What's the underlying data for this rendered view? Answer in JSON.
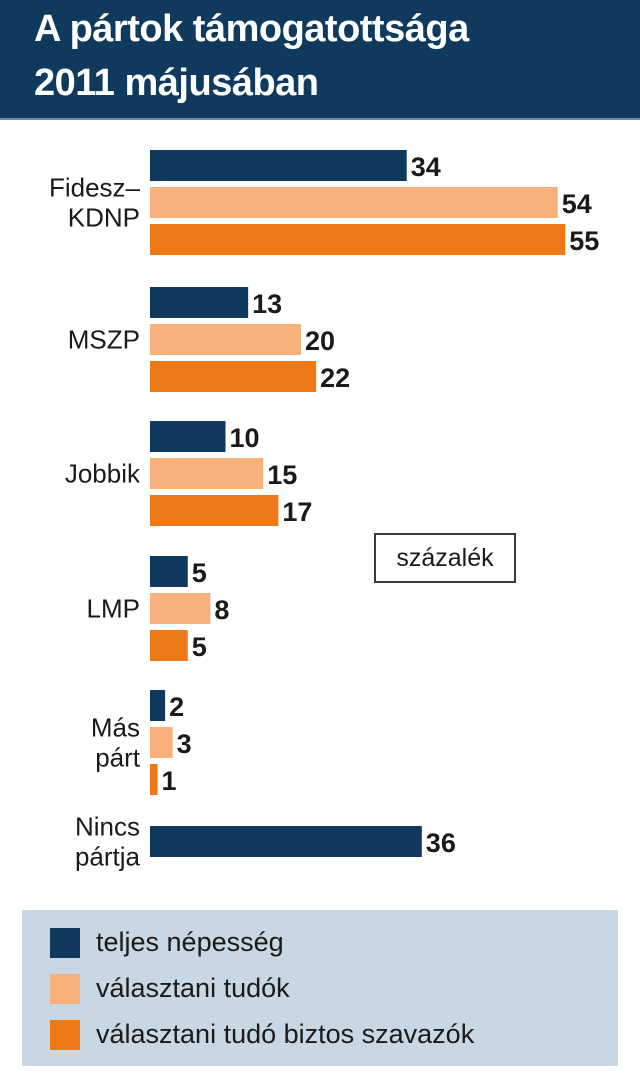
{
  "header": {
    "title_line1": "A pártok támogatottsága",
    "title_line2": "2011 májusában"
  },
  "unit_label": "százalék",
  "colors": {
    "header_bg": "#0f3a5e",
    "series": [
      "#0f3a5e",
      "#f7b07a",
      "#ee7a17"
    ],
    "legend_bg": "#c7d7e3"
  },
  "chart_data": {
    "type": "bar",
    "orientation": "horizontal",
    "title": "A pártok támogatottsága 2011 májusában",
    "unit": "százalék",
    "categories": [
      [
        "Fidesz–",
        "KDNP"
      ],
      [
        "MSZP"
      ],
      [
        "Jobbik"
      ],
      [
        "LMP"
      ],
      [
        "Más",
        "párt"
      ],
      [
        "Nincs",
        "pártja"
      ]
    ],
    "series": [
      {
        "name": "teljes népesség",
        "values": [
          34,
          13,
          10,
          5,
          2,
          36
        ]
      },
      {
        "name": "választani tudók",
        "values": [
          54,
          20,
          15,
          8,
          3,
          null
        ]
      },
      {
        "name": "választani tudó biztos szavazók",
        "values": [
          55,
          22,
          17,
          5,
          1,
          null
        ]
      }
    ],
    "legend_position": "bottom",
    "grid": false
  }
}
